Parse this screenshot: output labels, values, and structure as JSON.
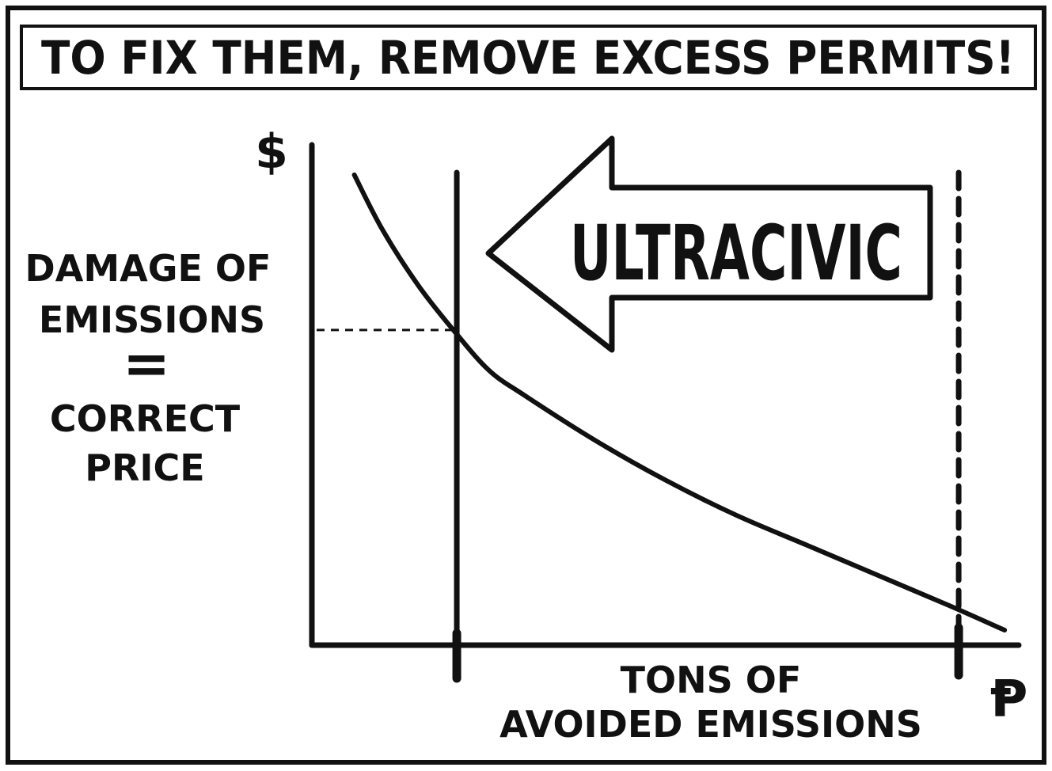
{
  "panel": {
    "caption": "TO FIX THEM, REMOVE EXCESS PERMITS!"
  },
  "colors": {
    "ink": "#111111",
    "paper": "#ffffff"
  },
  "chart_data": {
    "type": "line",
    "title": "",
    "xlabel": [
      "TONS OF",
      "AVOIDED EMISSIONS"
    ],
    "ylabel": "$",
    "x_unit_symbol": "Ᵽ",
    "grid": false,
    "ticks": "none",
    "xlim": [
      0,
      100
    ],
    "ylim": [
      0,
      100
    ],
    "series": [
      {
        "x": [
          6,
          10,
          15,
          20,
          25,
          30,
          40,
          50,
          60,
          70,
          80,
          90,
          98
        ],
        "y": [
          94,
          83,
          72,
          63,
          55,
          50,
          41,
          33,
          26,
          20,
          14,
          8,
          3
        ]
      }
    ],
    "vertical_lines": [
      {
        "x": 20.5,
        "style": "solid"
      },
      {
        "x": 91.5,
        "style": "dashed"
      }
    ],
    "horizontal_reference": {
      "y": 63,
      "style": "dashed",
      "to_x": 20.5
    },
    "annotations": {
      "y_side_label": [
        "DAMAGE OF",
        "EMISSIONS",
        "=",
        "CORRECT",
        "PRICE"
      ],
      "arrow_label": "ULTRACIVIC",
      "arrow_direction": "left"
    }
  }
}
